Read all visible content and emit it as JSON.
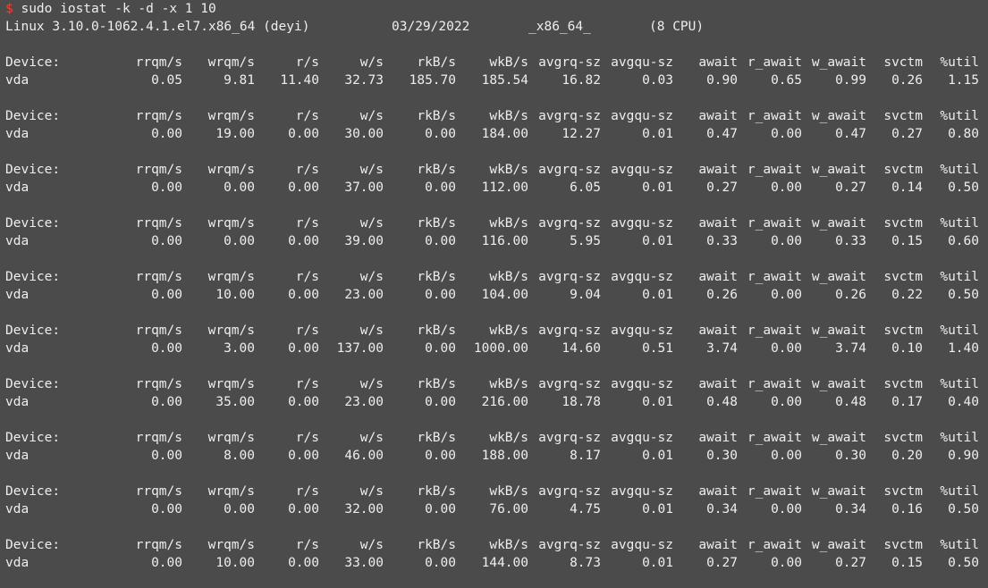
{
  "prompt": {
    "symbol": "$",
    "command": "sudo iostat -k -d -x 1 10"
  },
  "sysinfo": {
    "kernel": "Linux 3.10.0-1062.4.1.el7.x86_64 (deyi)",
    "date": "03/29/2022",
    "arch": "_x86_64_",
    "cpus": "(8 CPU)"
  },
  "columns": [
    "rrqm/s",
    "wrqm/s",
    "r/s",
    "w/s",
    "rkB/s",
    "wkB/s",
    "avgrq-sz",
    "avgqu-sz",
    "await",
    "r_await",
    "w_await",
    "svctm",
    "%util"
  ],
  "header_label": "Device:",
  "blocks": [
    {
      "device": "vda",
      "values": [
        "0.05",
        "9.81",
        "11.40",
        "32.73",
        "185.70",
        "185.54",
        "16.82",
        "0.03",
        "0.90",
        "0.65",
        "0.99",
        "0.26",
        "1.15"
      ]
    },
    {
      "device": "vda",
      "values": [
        "0.00",
        "19.00",
        "0.00",
        "30.00",
        "0.00",
        "184.00",
        "12.27",
        "0.01",
        "0.47",
        "0.00",
        "0.47",
        "0.27",
        "0.80"
      ]
    },
    {
      "device": "vda",
      "values": [
        "0.00",
        "0.00",
        "0.00",
        "37.00",
        "0.00",
        "112.00",
        "6.05",
        "0.01",
        "0.27",
        "0.00",
        "0.27",
        "0.14",
        "0.50"
      ]
    },
    {
      "device": "vda",
      "values": [
        "0.00",
        "0.00",
        "0.00",
        "39.00",
        "0.00",
        "116.00",
        "5.95",
        "0.01",
        "0.33",
        "0.00",
        "0.33",
        "0.15",
        "0.60"
      ]
    },
    {
      "device": "vda",
      "values": [
        "0.00",
        "10.00",
        "0.00",
        "23.00",
        "0.00",
        "104.00",
        "9.04",
        "0.01",
        "0.26",
        "0.00",
        "0.26",
        "0.22",
        "0.50"
      ]
    },
    {
      "device": "vda",
      "values": [
        "0.00",
        "3.00",
        "0.00",
        "137.00",
        "0.00",
        "1000.00",
        "14.60",
        "0.51",
        "3.74",
        "0.00",
        "3.74",
        "0.10",
        "1.40"
      ]
    },
    {
      "device": "vda",
      "values": [
        "0.00",
        "35.00",
        "0.00",
        "23.00",
        "0.00",
        "216.00",
        "18.78",
        "0.01",
        "0.48",
        "0.00",
        "0.48",
        "0.17",
        "0.40"
      ]
    },
    {
      "device": "vda",
      "values": [
        "0.00",
        "8.00",
        "0.00",
        "46.00",
        "0.00",
        "188.00",
        "8.17",
        "0.01",
        "0.30",
        "0.00",
        "0.30",
        "0.20",
        "0.90"
      ]
    },
    {
      "device": "vda",
      "values": [
        "0.00",
        "0.00",
        "0.00",
        "32.00",
        "0.00",
        "76.00",
        "4.75",
        "0.01",
        "0.34",
        "0.00",
        "0.34",
        "0.16",
        "0.50"
      ]
    },
    {
      "device": "vda",
      "values": [
        "0.00",
        "10.00",
        "0.00",
        "33.00",
        "0.00",
        "144.00",
        "8.73",
        "0.01",
        "0.27",
        "0.00",
        "0.27",
        "0.15",
        "0.50"
      ]
    }
  ]
}
